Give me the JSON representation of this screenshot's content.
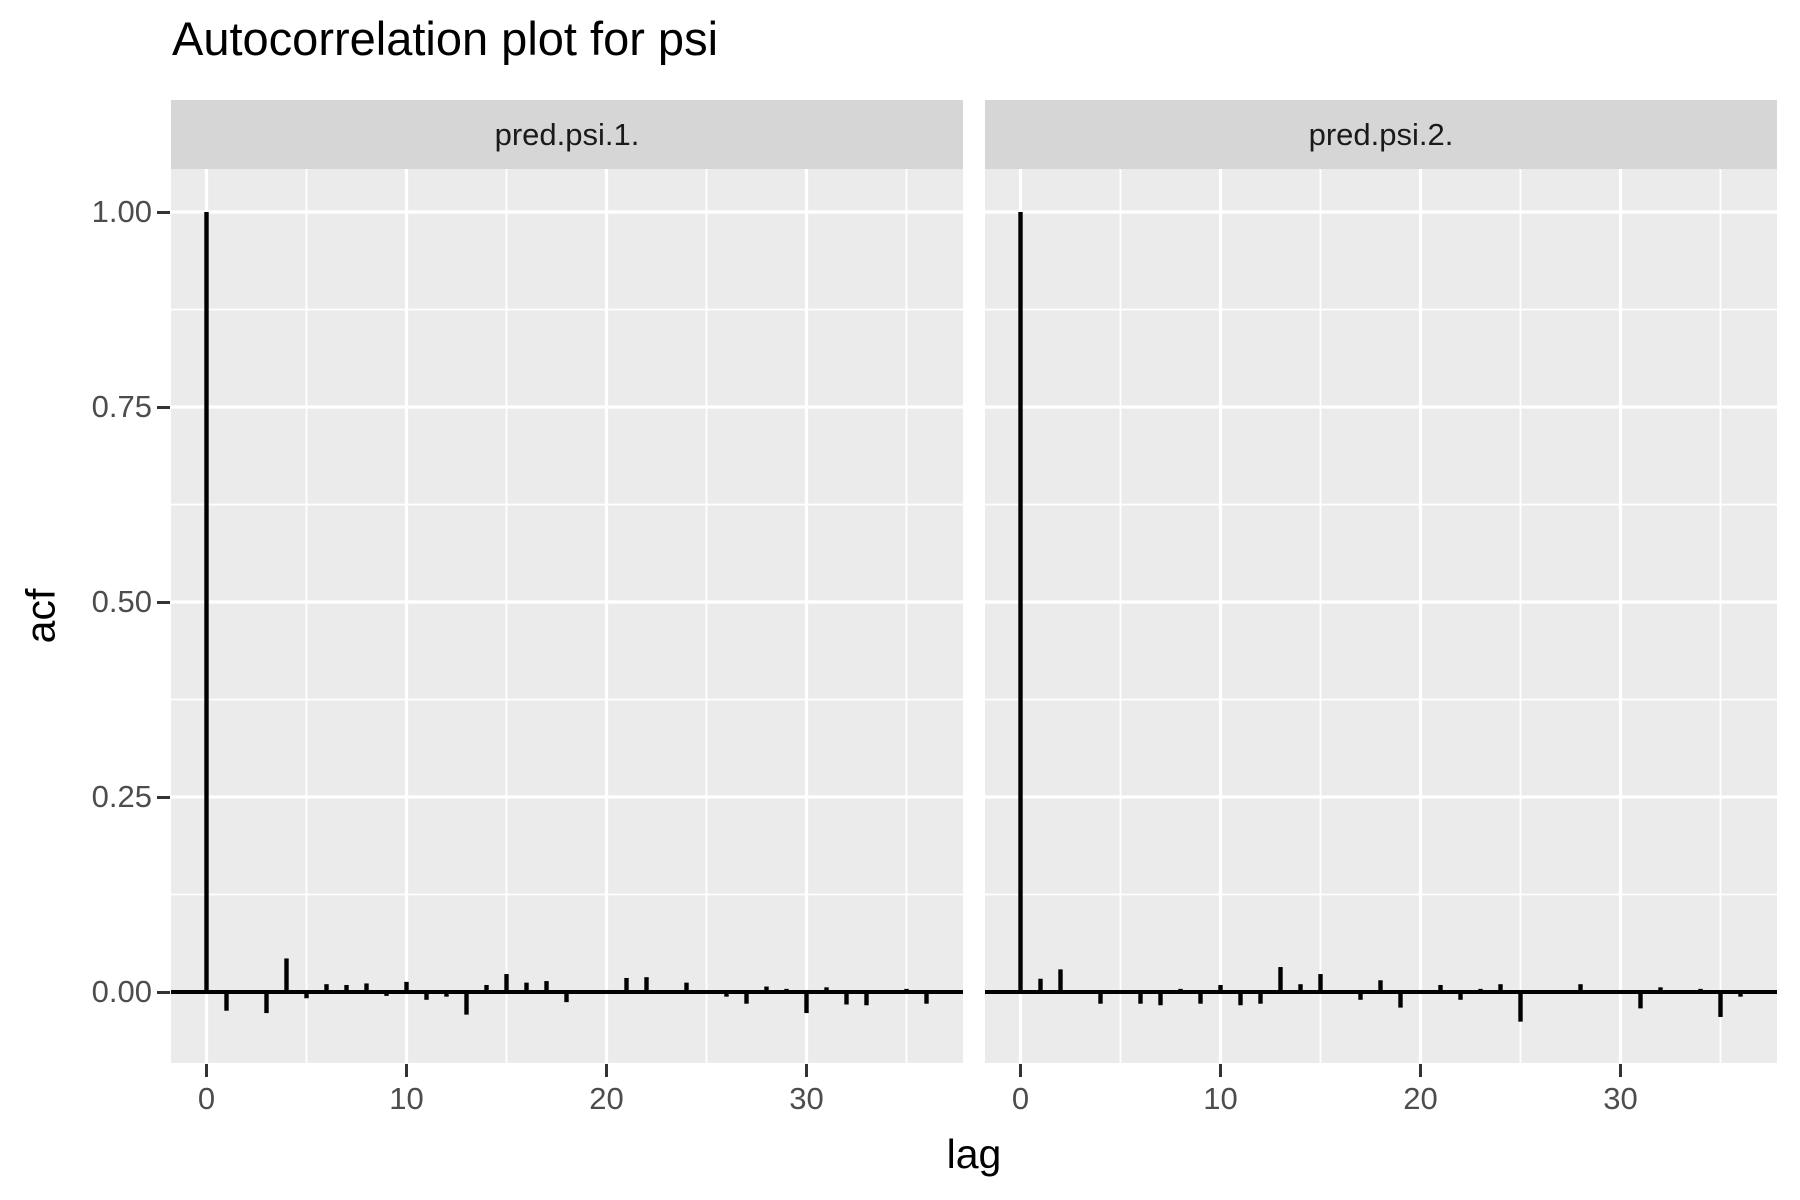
{
  "chart_data": {
    "type": "bar",
    "title": "Autocorrelation plot for psi",
    "xlabel": "lag",
    "ylabel": "acf",
    "legend_position": "none",
    "grid": {
      "panel_bg": "#EBEBEB",
      "major": "#FFFFFF",
      "minor": "#FFFFFF"
    },
    "x_axis": {
      "ticks": [
        {
          "label": "0",
          "value": 0
        },
        {
          "label": "10",
          "value": 10
        },
        {
          "label": "20",
          "value": 20
        },
        {
          "label": "30",
          "value": 30
        }
      ],
      "minor": [
        5,
        15,
        25,
        35
      ],
      "range": [
        -1.8,
        37.9
      ]
    },
    "y_axis": {
      "ticks": [
        {
          "label": "1.00",
          "value": 1.0
        },
        {
          "label": "0.75",
          "value": 0.75
        },
        {
          "label": "0.50",
          "value": 0.5
        },
        {
          "label": "0.25",
          "value": 0.25
        },
        {
          "label": "0.00",
          "value": 0.0
        }
      ],
      "minor": [
        0.875,
        0.625,
        0.375,
        0.125
      ],
      "range": [
        -0.091,
        1.079
      ]
    },
    "facets": [
      {
        "label": "pred.psi.1.",
        "lags": [
          0,
          1,
          2,
          3,
          4,
          5,
          6,
          7,
          8,
          9,
          10,
          11,
          12,
          13,
          14,
          15,
          16,
          17,
          18,
          19,
          20,
          21,
          22,
          23,
          24,
          25,
          26,
          27,
          28,
          29,
          30,
          31,
          32,
          33,
          34,
          35,
          36,
          37
        ],
        "acf": [
          1.0,
          -0.024,
          0.001,
          -0.027,
          0.043,
          -0.008,
          0.01,
          0.009,
          0.011,
          -0.005,
          0.013,
          -0.01,
          -0.006,
          -0.029,
          0.009,
          0.023,
          0.012,
          0.014,
          -0.013,
          -0.002,
          0.002,
          0.018,
          0.019,
          0.002,
          0.012,
          -0.002,
          -0.006,
          -0.015,
          0.007,
          0.004,
          -0.027,
          0.006,
          -0.016,
          -0.017,
          -0.002,
          0.004,
          -0.015,
          0.002
        ]
      },
      {
        "label": "pred.psi.2.",
        "lags": [
          0,
          1,
          2,
          3,
          4,
          5,
          6,
          7,
          8,
          9,
          10,
          11,
          12,
          13,
          14,
          15,
          16,
          17,
          18,
          19,
          20,
          21,
          22,
          23,
          24,
          25,
          26,
          27,
          28,
          29,
          30,
          31,
          32,
          33,
          34,
          35,
          36,
          37
        ],
        "acf": [
          1.0,
          0.017,
          0.029,
          0.002,
          -0.015,
          -0.002,
          -0.015,
          -0.017,
          0.004,
          -0.015,
          0.009,
          -0.017,
          -0.015,
          0.032,
          0.01,
          0.023,
          0.002,
          -0.01,
          0.015,
          -0.02,
          -0.002,
          0.009,
          -0.01,
          0.004,
          0.01,
          -0.038,
          0.002,
          -0.002,
          0.01,
          0.002,
          -0.002,
          -0.021,
          0.006,
          0.002,
          0.004,
          -0.032,
          -0.006,
          0.002
        ]
      }
    ],
    "colors": {
      "bar": "#000000",
      "zero_line": "#000000",
      "panel_bg": "#EBEBEB",
      "strip_bg": "#D6D6D6",
      "strip_text": "#1A1A1A",
      "tick_label": "#4D4D4D",
      "tick_mark": "#333333",
      "title_text": "#000000"
    }
  }
}
